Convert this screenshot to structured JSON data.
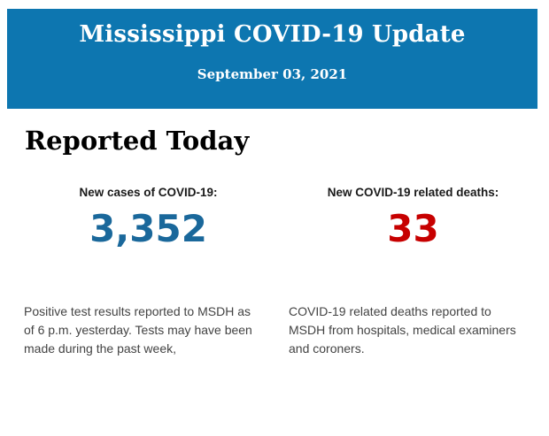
{
  "header": {
    "title": "Mississippi COVID-19 Update",
    "date": "September 03, 2021",
    "background_color": "#0d76b0",
    "text_color": "#ffffff"
  },
  "main": {
    "section_title": "Reported Today",
    "stats": [
      {
        "label": "New cases of COVID-19:",
        "value": "3,352",
        "value_color": "#1a689b",
        "description": "Positive test results reported to MSDH as of 6 p.m. yesterday. Tests may have been made during the past week,"
      },
      {
        "label": "New COVID-19 related deaths:",
        "value": "33",
        "value_color": "#c70000",
        "description": "COVID-19 related deaths reported to MSDH from hospitals, medical examiners and coroners."
      }
    ]
  }
}
